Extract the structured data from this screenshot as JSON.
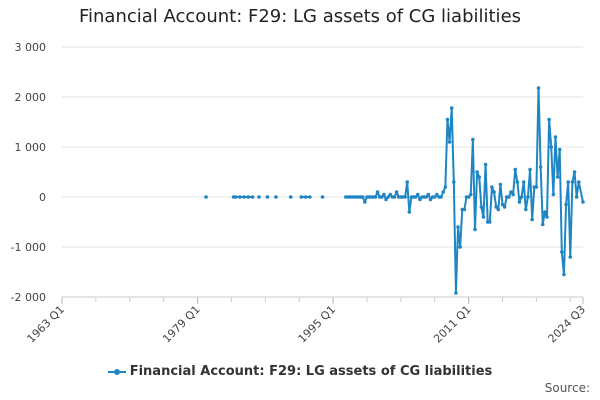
{
  "chart_data": {
    "type": "line",
    "title": "Financial Account: F29: LG assets of CG liabilities",
    "xlabel": "",
    "ylabel": "",
    "ylim": [
      -2000,
      3000
    ],
    "yticks": [
      -2000,
      -1000,
      0,
      1000,
      2000,
      3000
    ],
    "ytick_labels": [
      "-2 000",
      "-1 000",
      "0",
      "1 000",
      "2 000",
      "3 000"
    ],
    "x_first_label": "1963 Q1",
    "x_last_label": "2024 Q3",
    "xtick_labels": [
      "1963 Q1",
      "1979 Q1",
      "1995 Q1",
      "2011 Q1",
      "2024 Q3"
    ],
    "grid": "horizontal",
    "legend": "bottom",
    "series": [
      {
        "name": "Financial Account: F29: LG assets of CG liabilities",
        "color": "#1f86c3",
        "points": [
          [
            "1980 Q1",
            0
          ],
          [
            "1983 Q2",
            0
          ],
          [
            "1983 Q3",
            0
          ],
          [
            "1984 Q1",
            0
          ],
          [
            "1984 Q3",
            0
          ],
          [
            "1985 Q1",
            0
          ],
          [
            "1985 Q3",
            0
          ],
          [
            "1986 Q2",
            0
          ],
          [
            "1987 Q2",
            0
          ],
          [
            "1988 Q2",
            0
          ],
          [
            "1990 Q1",
            0
          ],
          [
            "1991 Q2",
            0
          ],
          [
            "1991 Q4",
            0
          ],
          [
            "1992 Q2",
            0
          ],
          [
            "1993 Q4",
            0
          ],
          [
            "1996 Q3",
            0
          ],
          [
            "1996 Q4",
            0
          ],
          [
            "1997 Q1",
            0
          ],
          [
            "1997 Q2",
            0
          ],
          [
            "1997 Q3",
            0
          ],
          [
            "1997 Q4",
            0
          ],
          [
            "1998 Q1",
            0
          ],
          [
            "1998 Q2",
            0
          ],
          [
            "1998 Q3",
            0
          ],
          [
            "1998 Q4",
            -100
          ],
          [
            "1999 Q1",
            0
          ],
          [
            "1999 Q2",
            0
          ],
          [
            "1999 Q3",
            0
          ],
          [
            "1999 Q4",
            0
          ],
          [
            "2000 Q1",
            0
          ],
          [
            "2000 Q2",
            100
          ],
          [
            "2000 Q3",
            0
          ],
          [
            "2000 Q4",
            0
          ],
          [
            "2001 Q1",
            50
          ],
          [
            "2001 Q2",
            -50
          ],
          [
            "2001 Q3",
            0
          ],
          [
            "2001 Q4",
            50
          ],
          [
            "2002 Q1",
            0
          ],
          [
            "2002 Q2",
            0
          ],
          [
            "2002 Q3",
            100
          ],
          [
            "2002 Q4",
            0
          ],
          [
            "2003 Q1",
            0
          ],
          [
            "2003 Q2",
            0
          ],
          [
            "2003 Q3",
            0
          ],
          [
            "2003 Q4",
            300
          ],
          [
            "2004 Q1",
            -300
          ],
          [
            "2004 Q2",
            0
          ],
          [
            "2004 Q3",
            0
          ],
          [
            "2004 Q4",
            0
          ],
          [
            "2005 Q1",
            50
          ],
          [
            "2005 Q2",
            -50
          ],
          [
            "2005 Q3",
            0
          ],
          [
            "2005 Q4",
            0
          ],
          [
            "2006 Q1",
            0
          ],
          [
            "2006 Q2",
            50
          ],
          [
            "2006 Q3",
            -50
          ],
          [
            "2006 Q4",
            0
          ],
          [
            "2007 Q1",
            0
          ],
          [
            "2007 Q2",
            50
          ],
          [
            "2007 Q3",
            0
          ],
          [
            "2007 Q4",
            0
          ],
          [
            "2008 Q1",
            100
          ],
          [
            "2008 Q2",
            200
          ],
          [
            "2008 Q3",
            1550
          ],
          [
            "2008 Q4",
            1100
          ],
          [
            "2009 Q1",
            1780
          ],
          [
            "2009 Q2",
            300
          ],
          [
            "2009 Q3",
            -1920
          ],
          [
            "2009 Q4",
            -600
          ],
          [
            "2010 Q1",
            -1000
          ],
          [
            "2010 Q2",
            -250
          ],
          [
            "2010 Q3",
            -250
          ],
          [
            "2010 Q4",
            0
          ],
          [
            "2011 Q1",
            0
          ],
          [
            "2011 Q2",
            50
          ],
          [
            "2011 Q3",
            1150
          ],
          [
            "2011 Q4",
            -650
          ],
          [
            "2012 Q1",
            500
          ],
          [
            "2012 Q2",
            400
          ],
          [
            "2012 Q3",
            -200
          ],
          [
            "2012 Q4",
            -400
          ],
          [
            "2013 Q1",
            650
          ],
          [
            "2013 Q2",
            -500
          ],
          [
            "2013 Q3",
            -500
          ],
          [
            "2013 Q4",
            200
          ],
          [
            "2014 Q1",
            100
          ],
          [
            "2014 Q2",
            -200
          ],
          [
            "2014 Q3",
            -250
          ],
          [
            "2014 Q4",
            250
          ],
          [
            "2015 Q1",
            -150
          ],
          [
            "2015 Q2",
            -200
          ],
          [
            "2015 Q3",
            0
          ],
          [
            "2015 Q4",
            0
          ],
          [
            "2016 Q1",
            100
          ],
          [
            "2016 Q2",
            50
          ],
          [
            "2016 Q3",
            550
          ],
          [
            "2016 Q4",
            300
          ],
          [
            "2017 Q1",
            -100
          ],
          [
            "2017 Q2",
            0
          ],
          [
            "2017 Q3",
            300
          ],
          [
            "2017 Q4",
            -250
          ],
          [
            "2018 Q1",
            0
          ],
          [
            "2018 Q2",
            550
          ],
          [
            "2018 Q3",
            -450
          ],
          [
            "2018 Q4",
            200
          ],
          [
            "2019 Q1",
            200
          ],
          [
            "2019 Q2",
            2180
          ],
          [
            "2019 Q3",
            600
          ],
          [
            "2019 Q4",
            -550
          ],
          [
            "2020 Q1",
            -300
          ],
          [
            "2020 Q2",
            -400
          ],
          [
            "2020 Q3",
            1550
          ],
          [
            "2020 Q4",
            1000
          ],
          [
            "2021 Q1",
            50
          ],
          [
            "2021 Q2",
            1200
          ],
          [
            "2021 Q3",
            400
          ],
          [
            "2021 Q4",
            950
          ],
          [
            "2022 Q1",
            -1100
          ],
          [
            "2022 Q2",
            -1550
          ],
          [
            "2022 Q3",
            -150
          ],
          [
            "2022 Q4",
            300
          ],
          [
            "2023 Q1",
            -1200
          ],
          [
            "2023 Q2",
            300
          ],
          [
            "2023 Q3",
            500
          ],
          [
            "2023 Q4",
            0
          ],
          [
            "2024 Q1",
            300
          ],
          [
            "2024 Q3",
            -100
          ]
        ]
      }
    ]
  },
  "legend": {
    "label": "Financial Account: F29: LG assets of CG liabilities"
  },
  "footer": {
    "source_label": "Source:"
  }
}
